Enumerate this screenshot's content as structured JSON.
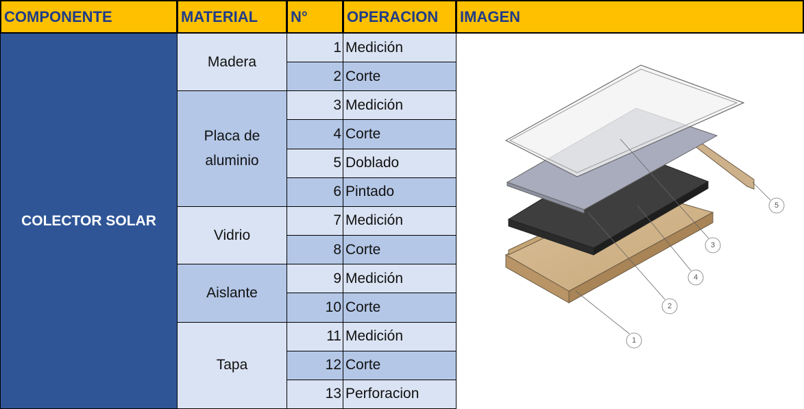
{
  "table": {
    "headers": [
      "COMPONENTE",
      "MATERIAL",
      "N°",
      "OPERACION",
      "IMAGEN"
    ],
    "component": "COLECTOR SOLAR",
    "materials": [
      {
        "name": "Madera",
        "operations": [
          {
            "number": 1,
            "name": "Medición"
          },
          {
            "number": 2,
            "name": "Corte"
          }
        ]
      },
      {
        "name": "Placa de aluminio",
        "operations": [
          {
            "number": 3,
            "name": "Medición"
          },
          {
            "number": 4,
            "name": "Corte"
          },
          {
            "number": 5,
            "name": "Doblado"
          },
          {
            "number": 6,
            "name": "Pintado"
          }
        ]
      },
      {
        "name": "Vidrio",
        "operations": [
          {
            "number": 7,
            "name": "Medición"
          },
          {
            "number": 8,
            "name": "Corte"
          }
        ]
      },
      {
        "name": "Aislante",
        "operations": [
          {
            "number": 9,
            "name": "Medición"
          },
          {
            "number": 10,
            "name": "Corte"
          }
        ]
      },
      {
        "name": "Tapa",
        "operations": [
          {
            "number": 11,
            "name": "Medición"
          },
          {
            "number": 12,
            "name": "Corte"
          },
          {
            "number": 13,
            "name": "Perforacion"
          }
        ]
      }
    ]
  },
  "image": {
    "callouts": [
      1,
      2,
      3,
      4,
      5
    ]
  }
}
